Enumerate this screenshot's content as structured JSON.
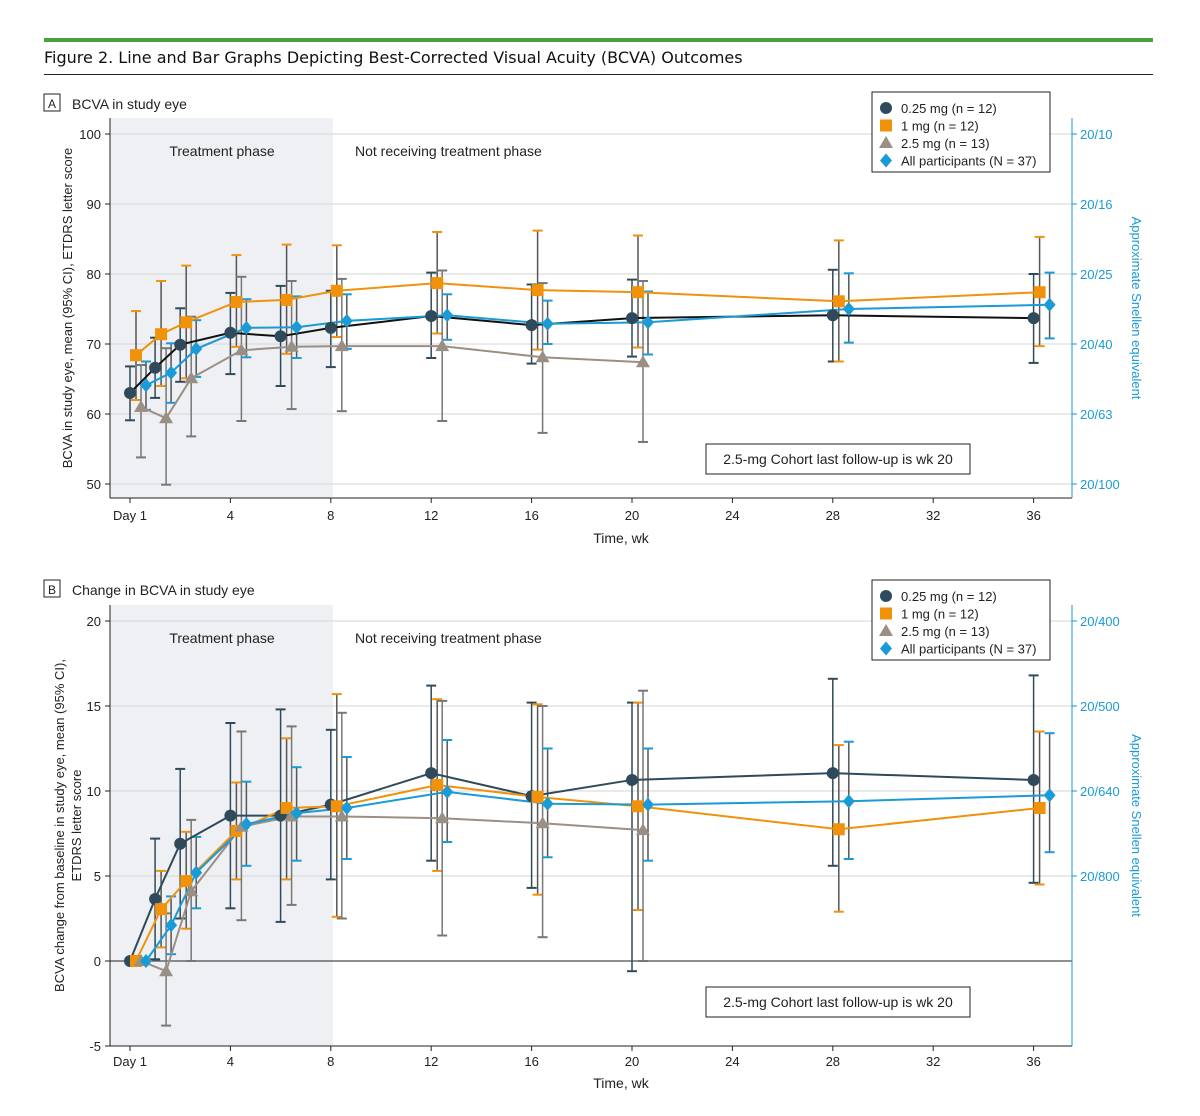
{
  "figure_title": "Figure 2. Line and Bar Graphs Depicting Best-Corrected Visual Acuity (BCVA) Outcomes",
  "colors": {
    "accent_rule": "#4aa23c",
    "shade": "#eff0f4",
    "right_axis": "#1a9ad6"
  },
  "chart_data": [
    {
      "type": "line",
      "panel_letter": "A",
      "title": "BCVA in study eye",
      "xlabel": "Time, wk",
      "ylabel": "BCVA in study eye, mean (95% CI), ETDRS letter score",
      "y2label": "Approximate Snellen equivalent",
      "x": [
        0,
        1,
        2,
        4,
        6,
        8,
        12,
        16,
        20,
        28,
        36
      ],
      "xticks": [
        {
          "v": 0,
          "label": "Day 1"
        },
        {
          "v": 4,
          "label": "4"
        },
        {
          "v": 8,
          "label": "8"
        },
        {
          "v": 12,
          "label": "12"
        },
        {
          "v": 16,
          "label": "16"
        },
        {
          "v": 20,
          "label": "20"
        },
        {
          "v": 24,
          "label": "24"
        },
        {
          "v": 28,
          "label": "28"
        },
        {
          "v": 32,
          "label": "32"
        },
        {
          "v": 36,
          "label": "36"
        }
      ],
      "ylim": [
        50,
        100
      ],
      "yticks": [
        50,
        60,
        70,
        80,
        90,
        100
      ],
      "y2ticks": [
        {
          "v": 100,
          "label": "20/10"
        },
        {
          "v": 90,
          "label": "20/16"
        },
        {
          "v": 80,
          "label": "20/25"
        },
        {
          "v": 70,
          "label": "20/40"
        },
        {
          "v": 60,
          "label": "20/63"
        },
        {
          "v": 50,
          "label": "20/100"
        }
      ],
      "grid": true,
      "legend_position": "top-right",
      "phase_labels": {
        "treatment": "Treatment phase",
        "off": "Not receiving treatment phase"
      },
      "treatment_phase_end": 8,
      "annotation": "2.5-mg Cohort last follow-up is wk 20",
      "series": [
        {
          "name": "0.25 mg (n = 12)",
          "marker": "circle",
          "color": "#2f4a5a",
          "line_color": "#111111",
          "values": [
            63.0,
            66.6,
            69.9,
            71.6,
            71.1,
            72.3,
            74.0,
            72.7,
            73.7,
            74.1,
            73.7
          ],
          "ci_low": [
            59.1,
            62.3,
            64.6,
            65.7,
            64.0,
            66.7,
            68.0,
            67.2,
            68.2,
            67.5,
            67.3
          ],
          "ci_high": [
            66.8,
            70.9,
            75.1,
            77.3,
            78.3,
            77.6,
            80.2,
            78.5,
            79.2,
            80.6,
            80.0
          ]
        },
        {
          "name": "1 mg (n = 12)",
          "marker": "square",
          "color": "#f0920c",
          "line_color": "#f0920c",
          "values": [
            68.4,
            71.4,
            73.1,
            76.0,
            76.3,
            77.6,
            78.7,
            77.7,
            77.4,
            76.1,
            77.4
          ],
          "ci_low": [
            62.0,
            64.0,
            65.1,
            69.6,
            68.6,
            71.0,
            71.5,
            69.2,
            69.5,
            67.5,
            69.7
          ],
          "ci_high": [
            74.7,
            79.0,
            81.2,
            82.7,
            84.2,
            84.1,
            86.0,
            86.2,
            85.5,
            84.8,
            85.3
          ]
        },
        {
          "name": "2.5 mg (n = 13)",
          "marker": "triangle",
          "color": "#9a8f84",
          "line_color": "#9a8f84",
          "values": [
            61.0,
            59.4,
            65.1,
            69.1,
            69.6,
            69.7,
            69.7,
            68.1,
            67.4,
            null,
            null
          ],
          "ci_low": [
            53.8,
            49.9,
            56.8,
            59.0,
            60.7,
            60.4,
            59.0,
            57.3,
            56.0,
            null,
            null
          ],
          "ci_high": [
            67.0,
            69.4,
            73.9,
            79.6,
            79.0,
            79.3,
            80.5,
            78.7,
            79.0,
            null,
            null
          ]
        },
        {
          "name": "All participants (N = 37)",
          "marker": "diamond",
          "color": "#1a9ad6",
          "line_color": "#1a9ad6",
          "values": [
            64.1,
            65.9,
            69.3,
            72.3,
            72.4,
            73.3,
            74.1,
            72.9,
            73.1,
            75.0,
            75.6
          ],
          "ci_low": [
            60.6,
            61.6,
            65.3,
            68.1,
            68.0,
            69.3,
            70.6,
            70.0,
            68.5,
            70.2,
            70.8
          ],
          "ci_high": [
            67.5,
            70.1,
            73.4,
            76.4,
            76.8,
            77.1,
            77.1,
            76.2,
            77.5,
            80.1,
            80.2
          ]
        }
      ]
    },
    {
      "type": "line",
      "panel_letter": "B",
      "title": "Change in BCVA in study eye",
      "xlabel": "Time, wk",
      "ylabel": "BCVA change from baseline in study eye, mean (95% CI), ETDRS letter score",
      "y2label": "Approximate Snellen equivalent",
      "x": [
        0,
        1,
        2,
        4,
        6,
        8,
        12,
        16,
        20,
        28,
        36
      ],
      "xticks": [
        {
          "v": 0,
          "label": "Day 1"
        },
        {
          "v": 4,
          "label": "4"
        },
        {
          "v": 8,
          "label": "8"
        },
        {
          "v": 12,
          "label": "12"
        },
        {
          "v": 16,
          "label": "16"
        },
        {
          "v": 20,
          "label": "20"
        },
        {
          "v": 24,
          "label": "24"
        },
        {
          "v": 28,
          "label": "28"
        },
        {
          "v": 32,
          "label": "32"
        },
        {
          "v": 36,
          "label": "36"
        }
      ],
      "ylim": [
        -5,
        20
      ],
      "yticks": [
        -5,
        0,
        5,
        10,
        15,
        20
      ],
      "y2ticks": [
        {
          "v": 20,
          "label": "20/400"
        },
        {
          "v": 15,
          "label": "20/500"
        },
        {
          "v": 10,
          "label": "20/640"
        },
        {
          "v": 5,
          "label": "20/800"
        }
      ],
      "grid": true,
      "legend_position": "top-right",
      "phase_labels": {
        "treatment": "Treatment phase",
        "off": "Not receiving treatment phase"
      },
      "treatment_phase_end": 8,
      "annotation": "2.5-mg Cohort last follow-up is wk 20",
      "series": [
        {
          "name": "0.25 mg (n = 12)",
          "marker": "circle",
          "color": "#2f4a5a",
          "line_color": "#2f4a5a",
          "values": [
            0,
            3.65,
            6.9,
            8.55,
            8.55,
            9.2,
            11.05,
            9.7,
            10.65,
            11.05,
            10.65
          ],
          "ci_low": [
            0,
            0.1,
            2.5,
            3.1,
            2.3,
            4.8,
            5.9,
            4.3,
            -0.6,
            5.6,
            4.6
          ],
          "ci_high": [
            0,
            7.2,
            11.3,
            14.0,
            14.8,
            13.6,
            16.2,
            15.2,
            15.2,
            16.6,
            16.8
          ]
        },
        {
          "name": "1 mg (n = 12)",
          "marker": "square",
          "color": "#f0920c",
          "line_color": "#f0920c",
          "values": [
            0,
            3.05,
            4.7,
            7.65,
            9.0,
            9.1,
            10.35,
            9.65,
            9.1,
            7.75,
            9.0
          ],
          "ci_low": [
            0,
            0.8,
            1.9,
            4.8,
            4.8,
            2.6,
            5.3,
            3.9,
            3.0,
            2.9,
            4.5
          ],
          "ci_high": [
            0,
            5.3,
            7.6,
            10.5,
            13.1,
            15.7,
            15.4,
            15.1,
            15.2,
            12.7,
            13.5
          ]
        },
        {
          "name": "2.5 mg (n = 13)",
          "marker": "triangle",
          "color": "#9a8f84",
          "line_color": "#9a8f84",
          "values": [
            0,
            -0.6,
            4.1,
            7.9,
            8.5,
            8.5,
            8.4,
            8.1,
            7.7,
            null,
            null
          ],
          "ci_low": [
            0,
            -3.8,
            0,
            2.4,
            3.3,
            2.5,
            1.5,
            1.4,
            0,
            null,
            null
          ],
          "ci_high": [
            0,
            2.8,
            8.3,
            13.5,
            13.8,
            14.6,
            15.3,
            15.0,
            15.9,
            null,
            null
          ]
        },
        {
          "name": "All participants (N = 37)",
          "marker": "diamond",
          "color": "#1a9ad6",
          "line_color": "#1a9ad6",
          "values": [
            0,
            2.1,
            5.2,
            8.05,
            8.7,
            9.0,
            9.95,
            9.25,
            9.2,
            9.4,
            9.75
          ],
          "ci_low": [
            0,
            0.4,
            3.1,
            5.6,
            5.9,
            6.0,
            7.0,
            6.1,
            5.9,
            6.0,
            6.4
          ],
          "ci_high": [
            0,
            3.8,
            7.3,
            10.55,
            11.4,
            12.0,
            13.0,
            12.5,
            12.5,
            12.9,
            13.4
          ]
        }
      ]
    }
  ]
}
